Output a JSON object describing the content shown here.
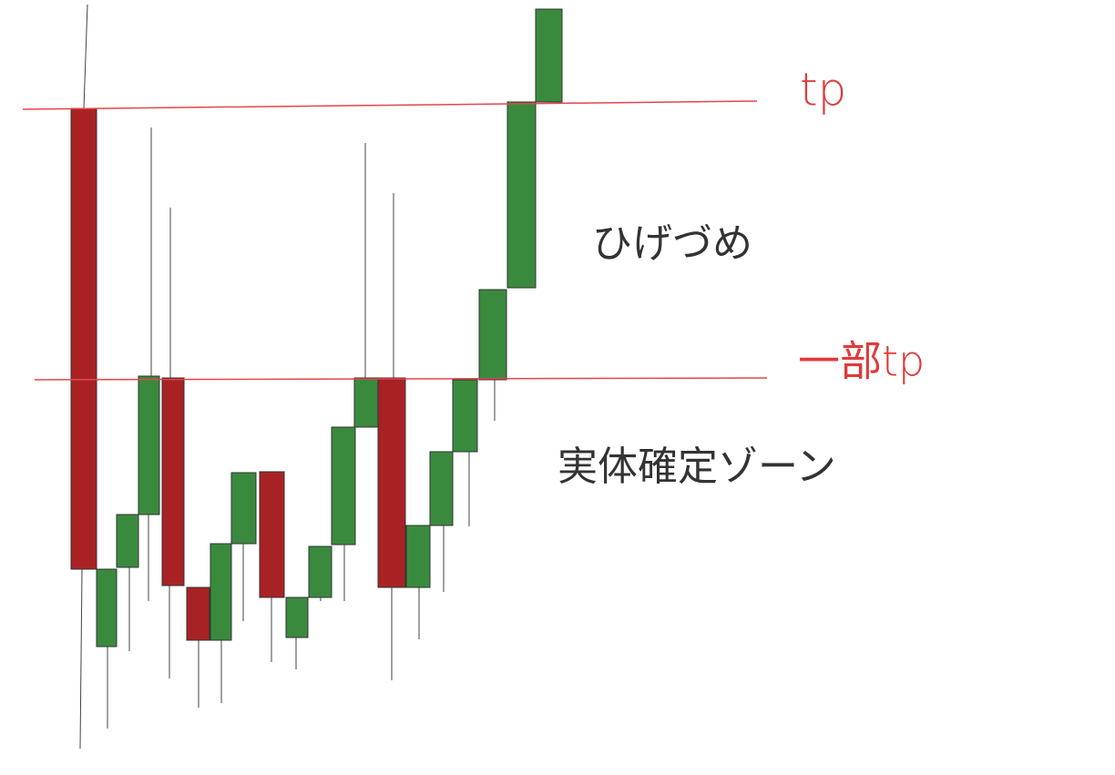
{
  "labels": {
    "tp": "tp",
    "partial_tp": "一部tp",
    "wick_fill": "ひげづめ",
    "body_confirm_zone": "実体確定ゾーン"
  }
}
